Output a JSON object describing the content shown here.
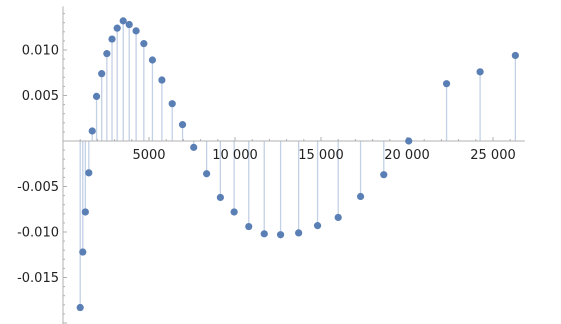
{
  "chart_data": {
    "type": "scatter",
    "style": "stem",
    "title": "",
    "xlabel": "",
    "ylabel": "",
    "xlim": [
      0,
      26500
    ],
    "ylim": [
      -0.0205,
      0.0148
    ],
    "grid": false,
    "legend": "none",
    "colors": {
      "point": "#5a7fb5",
      "stem": "#c3d1e6",
      "axis": "#b0b0b0",
      "text": "#222222"
    },
    "x_ticks": [
      {
        "value": 5000,
        "label": "5000"
      },
      {
        "value": 10000,
        "label": "10 000"
      },
      {
        "value": 15000,
        "label": "15 000"
      },
      {
        "value": 20000,
        "label": "20 000"
      },
      {
        "value": 25000,
        "label": "25 000"
      }
    ],
    "y_ticks": [
      {
        "value": 0.01,
        "label": "0.010"
      },
      {
        "value": 0.005,
        "label": "0.005"
      },
      {
        "value": -0.005,
        "label": "-0.005"
      },
      {
        "value": -0.01,
        "label": "-0.010"
      },
      {
        "value": -0.015,
        "label": "-0.015"
      }
    ],
    "points": [
      {
        "x": 1000,
        "y": -0.0183
      },
      {
        "x": 1150,
        "y": -0.0122
      },
      {
        "x": 1300,
        "y": -0.0078
      },
      {
        "x": 1500,
        "y": -0.0035
      },
      {
        "x": 1700,
        "y": 0.0011
      },
      {
        "x": 1950,
        "y": 0.0049
      },
      {
        "x": 2250,
        "y": 0.0074
      },
      {
        "x": 2550,
        "y": 0.0096
      },
      {
        "x": 2850,
        "y": 0.0112
      },
      {
        "x": 3150,
        "y": 0.0124
      },
      {
        "x": 3500,
        "y": 0.0132
      },
      {
        "x": 3850,
        "y": 0.0128
      },
      {
        "x": 4250,
        "y": 0.0121
      },
      {
        "x": 4700,
        "y": 0.0107
      },
      {
        "x": 5200,
        "y": 0.0089
      },
      {
        "x": 5750,
        "y": 0.0067
      },
      {
        "x": 6350,
        "y": 0.0041
      },
      {
        "x": 6950,
        "y": 0.0018
      },
      {
        "x": 7600,
        "y": -0.0007
      },
      {
        "x": 8350,
        "y": -0.0036
      },
      {
        "x": 9150,
        "y": -0.0062
      },
      {
        "x": 9950,
        "y": -0.0078
      },
      {
        "x": 10800,
        "y": -0.0094
      },
      {
        "x": 11700,
        "y": -0.0102
      },
      {
        "x": 12650,
        "y": -0.0103
      },
      {
        "x": 13700,
        "y": -0.0101
      },
      {
        "x": 14800,
        "y": -0.0093
      },
      {
        "x": 16000,
        "y": -0.0084
      },
      {
        "x": 17300,
        "y": -0.0061
      },
      {
        "x": 18650,
        "y": -0.0037
      },
      {
        "x": 20100,
        "y": 0.0
      },
      {
        "x": 22300,
        "y": 0.0063
      },
      {
        "x": 24250,
        "y": 0.0076
      },
      {
        "x": 26300,
        "y": 0.0094
      }
    ]
  }
}
